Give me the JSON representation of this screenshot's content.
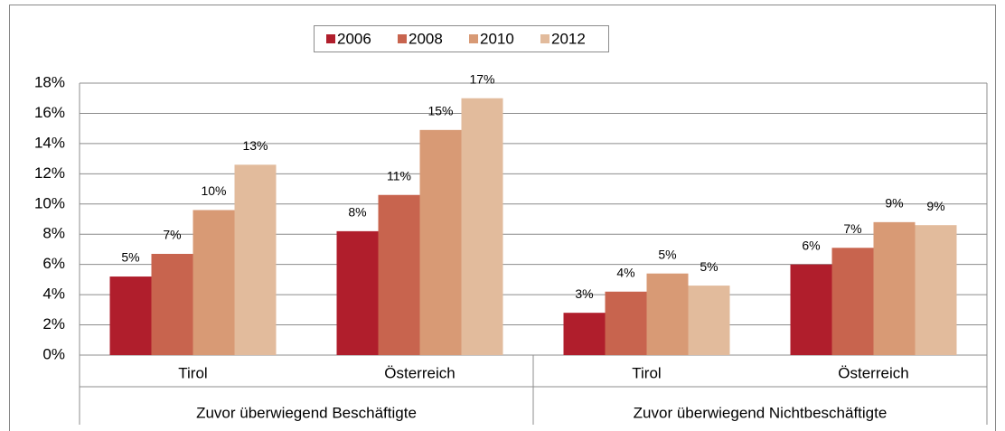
{
  "chart_data": {
    "type": "bar",
    "groups": [
      {
        "name": "Zuvor überwiegend Beschäftigte",
        "categories": [
          "Tirol",
          "Österreich"
        ]
      },
      {
        "name": "Zuvor überwiegend Nichtbeschäftigte",
        "categories": [
          "Tirol",
          "Österreich"
        ]
      }
    ],
    "series": [
      {
        "name": "2006",
        "color": "#b01e2c",
        "values": [
          5.2,
          8.2,
          2.8,
          6.0
        ],
        "value_labels": [
          "5%",
          "8%",
          "3%",
          "6%"
        ]
      },
      {
        "name": "2008",
        "color": "#c8644e",
        "values": [
          6.7,
          10.6,
          4.2,
          7.1
        ],
        "value_labels": [
          "7%",
          "11%",
          "4%",
          "7%"
        ]
      },
      {
        "name": "2010",
        "color": "#d89a75",
        "values": [
          9.6,
          14.9,
          5.4,
          8.8
        ],
        "value_labels": [
          "10%",
          "15%",
          "5%",
          "9%"
        ]
      },
      {
        "name": "2012",
        "color": "#e2bb9c",
        "values": [
          12.6,
          17.0,
          4.6,
          8.6
        ],
        "value_labels": [
          "13%",
          "17%",
          "5%",
          "9%"
        ]
      }
    ],
    "ylim": [
      0,
      18
    ],
    "yticks": [
      {
        "value": 0,
        "label": "0%"
      },
      {
        "value": 2,
        "label": "2%"
      },
      {
        "value": 4,
        "label": "4%"
      },
      {
        "value": 6,
        "label": "6%"
      },
      {
        "value": 8,
        "label": "8%"
      },
      {
        "value": 10,
        "label": "10%"
      },
      {
        "value": 12,
        "label": "12%"
      },
      {
        "value": 14,
        "label": "14%"
      },
      {
        "value": 16,
        "label": "16%"
      },
      {
        "value": 18,
        "label": "18%"
      }
    ],
    "grid": true,
    "legend": "top"
  }
}
